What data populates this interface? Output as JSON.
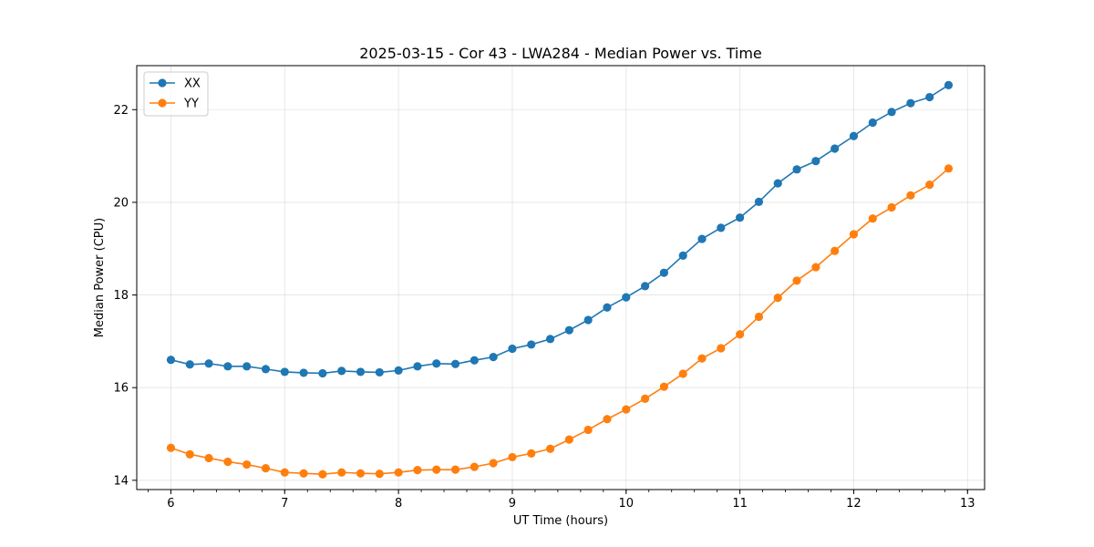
{
  "chart_data": {
    "type": "line",
    "title": "2025-03-15 - Cor 43 - LWA284 - Median Power vs. Time",
    "xlabel": "UT Time (hours)",
    "ylabel": "Median Power (CPU)",
    "xlim": [
      5.7,
      13.15
    ],
    "ylim": [
      13.8,
      22.95
    ],
    "xticks": [
      6,
      7,
      8,
      9,
      10,
      11,
      12,
      13
    ],
    "yticks": [
      14,
      16,
      18,
      20,
      22
    ],
    "grid": true,
    "legend_position": "top-left",
    "x": [
      6.0,
      6.1667,
      6.3333,
      6.5,
      6.6667,
      6.8333,
      7.0,
      7.1667,
      7.3333,
      7.5,
      7.6667,
      7.8333,
      8.0,
      8.1667,
      8.3333,
      8.5,
      8.6667,
      8.8333,
      9.0,
      9.1667,
      9.3333,
      9.5,
      9.6667,
      9.8333,
      10.0,
      10.1667,
      10.3333,
      10.5,
      10.6667,
      10.8333,
      11.0,
      11.1667,
      11.3333,
      11.5,
      11.6667,
      11.8333,
      12.0,
      12.1667,
      12.3333,
      12.5,
      12.6667,
      12.8333
    ],
    "series": [
      {
        "name": "XX",
        "color": "#1f77b4",
        "values": [
          16.6,
          16.5,
          16.52,
          16.46,
          16.46,
          16.4,
          16.34,
          16.32,
          16.31,
          16.36,
          16.34,
          16.33,
          16.37,
          16.46,
          16.52,
          16.51,
          16.59,
          16.66,
          16.84,
          16.93,
          17.05,
          17.24,
          17.46,
          17.73,
          17.95,
          18.19,
          18.48,
          18.85,
          19.21,
          19.45,
          19.67,
          20.01,
          20.41,
          20.71,
          20.89,
          21.16,
          21.43,
          21.72,
          21.95,
          22.14,
          22.27,
          22.53
        ]
      },
      {
        "name": "YY",
        "color": "#ff7f0e",
        "values": [
          14.7,
          14.56,
          14.48,
          14.4,
          14.34,
          14.26,
          14.17,
          14.15,
          14.13,
          14.17,
          14.15,
          14.14,
          14.17,
          14.22,
          14.23,
          14.23,
          14.29,
          14.37,
          14.5,
          14.58,
          14.68,
          14.88,
          15.09,
          15.32,
          15.53,
          15.76,
          16.02,
          16.3,
          16.63,
          16.85,
          17.15,
          17.53,
          17.94,
          18.31,
          18.6,
          18.95,
          19.31,
          19.65,
          19.89,
          20.15,
          20.38,
          20.73
        ]
      }
    ]
  }
}
